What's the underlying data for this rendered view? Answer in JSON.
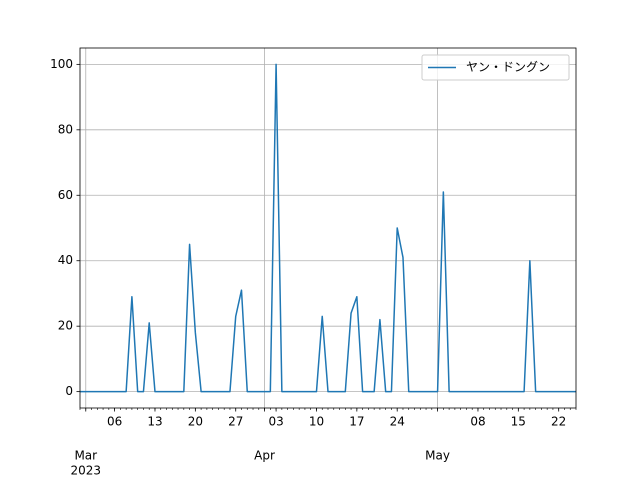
{
  "chart_data": {
    "type": "line",
    "x": [
      "2023-02-28",
      "2023-03-01",
      "2023-03-02",
      "2023-03-03",
      "2023-03-04",
      "2023-03-05",
      "2023-03-06",
      "2023-03-07",
      "2023-03-08",
      "2023-03-09",
      "2023-03-10",
      "2023-03-11",
      "2023-03-12",
      "2023-03-13",
      "2023-03-14",
      "2023-03-15",
      "2023-03-16",
      "2023-03-17",
      "2023-03-18",
      "2023-03-19",
      "2023-03-20",
      "2023-03-21",
      "2023-03-22",
      "2023-03-23",
      "2023-03-24",
      "2023-03-25",
      "2023-03-26",
      "2023-03-27",
      "2023-03-28",
      "2023-03-29",
      "2023-03-30",
      "2023-03-31",
      "2023-04-01",
      "2023-04-02",
      "2023-04-03",
      "2023-04-04",
      "2023-04-05",
      "2023-04-06",
      "2023-04-07",
      "2023-04-08",
      "2023-04-09",
      "2023-04-10",
      "2023-04-11",
      "2023-04-12",
      "2023-04-13",
      "2023-04-14",
      "2023-04-15",
      "2023-04-16",
      "2023-04-17",
      "2023-04-18",
      "2023-04-19",
      "2023-04-20",
      "2023-04-21",
      "2023-04-22",
      "2023-04-23",
      "2023-04-24",
      "2023-04-25",
      "2023-04-26",
      "2023-04-27",
      "2023-04-28",
      "2023-04-29",
      "2023-04-30",
      "2023-05-01",
      "2023-05-02",
      "2023-05-03",
      "2023-05-04",
      "2023-05-05",
      "2023-05-06",
      "2023-05-07",
      "2023-05-08",
      "2023-05-09",
      "2023-05-10",
      "2023-05-11",
      "2023-05-12",
      "2023-05-13",
      "2023-05-14",
      "2023-05-15",
      "2023-05-16",
      "2023-05-17",
      "2023-05-18",
      "2023-05-19",
      "2023-05-20",
      "2023-05-21",
      "2023-05-22",
      "2023-05-23",
      "2023-05-24",
      "2023-05-25"
    ],
    "series": [
      {
        "name": "ヤン・ドングン",
        "color": "#1f77b4",
        "values": [
          0,
          0,
          0,
          0,
          0,
          0,
          0,
          0,
          0,
          29,
          0,
          0,
          21,
          0,
          0,
          0,
          0,
          0,
          0,
          45,
          18,
          0,
          0,
          0,
          0,
          0,
          0,
          23,
          31,
          0,
          0,
          0,
          0,
          0,
          100,
          0,
          0,
          0,
          0,
          0,
          0,
          0,
          23,
          0,
          0,
          0,
          0,
          24,
          29,
          0,
          0,
          0,
          22,
          0,
          0,
          50,
          41,
          0,
          0,
          0,
          0,
          0,
          0,
          61,
          0,
          0,
          0,
          0,
          0,
          0,
          0,
          0,
          0,
          0,
          0,
          0,
          0,
          0,
          40,
          0,
          0,
          0,
          0,
          0,
          0,
          0,
          0
        ]
      }
    ],
    "xlim": [
      "2023-02-28",
      "2023-05-25"
    ],
    "xticks": [
      {
        "value": "2023-03-06",
        "label": "06"
      },
      {
        "value": "2023-03-13",
        "label": "13"
      },
      {
        "value": "2023-03-20",
        "label": "20"
      },
      {
        "value": "2023-03-27",
        "label": "27"
      },
      {
        "value": "2023-04-03",
        "label": "03"
      },
      {
        "value": "2023-04-10",
        "label": "10"
      },
      {
        "value": "2023-04-17",
        "label": "17"
      },
      {
        "value": "2023-04-24",
        "label": "24"
      },
      {
        "value": "2023-05-08",
        "label": "08"
      },
      {
        "value": "2023-05-15",
        "label": "15"
      },
      {
        "value": "2023-05-22",
        "label": "22"
      }
    ],
    "month_ticks": [
      {
        "value": "2023-03-01",
        "label": "Mar"
      },
      {
        "value": "2023-04-01",
        "label": "Apr"
      },
      {
        "value": "2023-05-01",
        "label": "May"
      }
    ],
    "x_offset_label": "2023",
    "ylim": [
      -5,
      105
    ],
    "yticks": [
      0,
      20,
      40,
      60,
      80,
      100
    ],
    "grid": true,
    "legend": "upper right"
  }
}
